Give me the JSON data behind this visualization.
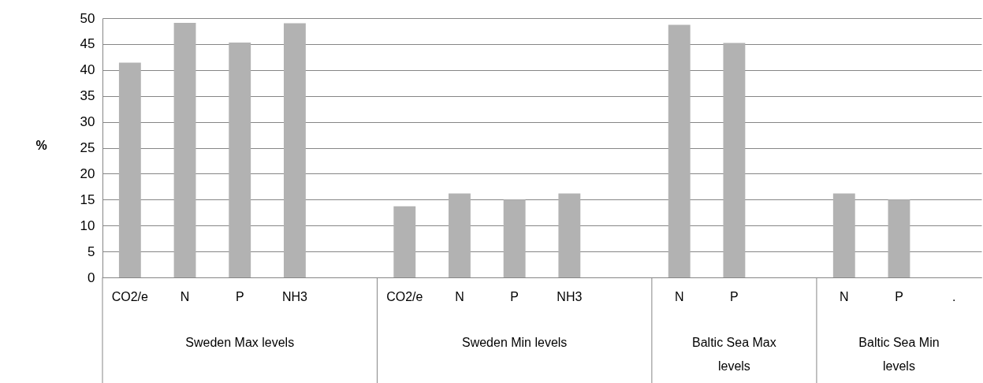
{
  "chart_data": {
    "type": "bar",
    "ylabel": "%",
    "categories": [
      "CO2/e",
      "N",
      "P",
      "NH3",
      null,
      "CO2/e",
      "N",
      "P",
      "NH3",
      null,
      "N",
      "P",
      null,
      "N",
      "P",
      "."
    ],
    "values": [
      41.4,
      49.1,
      45.3,
      49.0,
      null,
      13.7,
      16.2,
      15.0,
      16.2,
      null,
      48.7,
      45.2,
      null,
      16.2,
      15.0,
      null
    ],
    "color": "#b2b2b2",
    "ylim": [
      0,
      50
    ],
    "yticks": [
      0,
      5,
      10,
      15,
      20,
      25,
      30,
      35,
      40,
      45,
      50
    ],
    "grid": "y",
    "annotations": [
      "Sweden Max levels",
      "Sweden Min levels",
      "Baltic Sea Max levels",
      "Baltic Sea Min levels"
    ]
  }
}
